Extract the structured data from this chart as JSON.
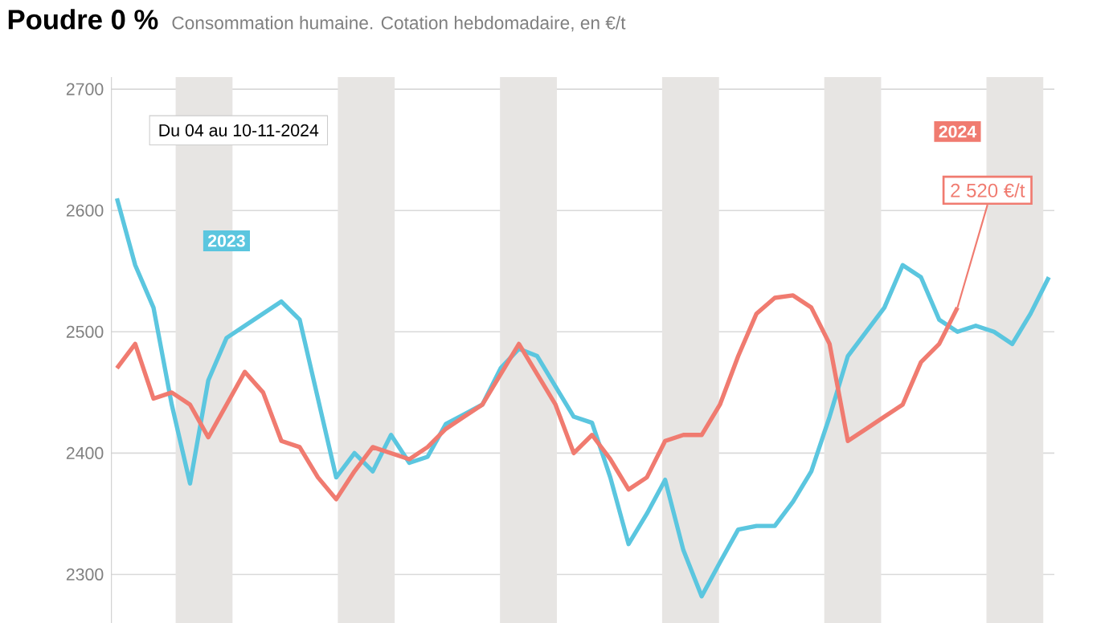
{
  "chart_data": {
    "type": "line",
    "title": "Poudre 0 %",
    "subtitle": "Consommation humaine. Cotation hebdomadaire, en €/t",
    "categories": [
      null,
      null,
      null,
      null,
      null,
      null,
      null,
      null,
      null,
      null,
      null,
      null,
      null,
      null,
      null,
      null,
      null,
      null,
      null,
      null,
      null,
      null,
      null,
      null,
      null,
      null,
      null,
      null,
      null,
      null,
      null,
      null,
      null,
      null,
      null,
      null,
      null,
      null,
      null,
      null,
      null,
      null,
      null,
      null,
      null,
      null,
      null,
      null,
      null,
      null,
      null,
      null
    ],
    "series": [
      {
        "name": "2023",
        "color": "#5bc6df",
        "values": [
          2610,
          2555,
          2520,
          2440,
          2375,
          2460,
          2495,
          2505,
          2515,
          2525,
          2510,
          2445,
          2380,
          2400,
          2385,
          2415,
          2392,
          2397,
          2424,
          2432,
          2440,
          2470,
          2486,
          2480,
          2455,
          2430,
          2425,
          2380,
          2325,
          2350,
          2378,
          2320,
          2282,
          2310,
          2337,
          2340,
          2340,
          2360,
          2385,
          2430,
          2480,
          2500,
          2520,
          2555,
          2545,
          2510,
          2500,
          2505,
          2500,
          2490,
          2515,
          2545
        ]
      },
      {
        "name": "2024",
        "color": "#f07b70",
        "values": [
          2470,
          2490,
          2445,
          2450,
          2440,
          2413,
          2440,
          2467,
          2450,
          2410,
          2405,
          2380,
          2362,
          2385,
          2405,
          2400,
          2395,
          2405,
          2420,
          2430,
          2440,
          2465,
          2490,
          2465,
          2440,
          2400,
          2415,
          2395,
          2370,
          2380,
          2410,
          2415,
          2415,
          2440,
          2480,
          2515,
          2528,
          2530,
          2520,
          2490,
          2410,
          2420,
          2430,
          2440,
          2475,
          2490,
          2520,
          null,
          null,
          null,
          null,
          null
        ]
      }
    ],
    "ylim": [
      2260,
      2710
    ],
    "yticks": [
      2300,
      2400,
      2500,
      2600,
      2700
    ],
    "grid": "y",
    "legend": false,
    "marker": "none",
    "line_style": "solid",
    "annotations": [
      "Du 04 au 10-11-2024",
      "2 520 €/t"
    ]
  }
}
